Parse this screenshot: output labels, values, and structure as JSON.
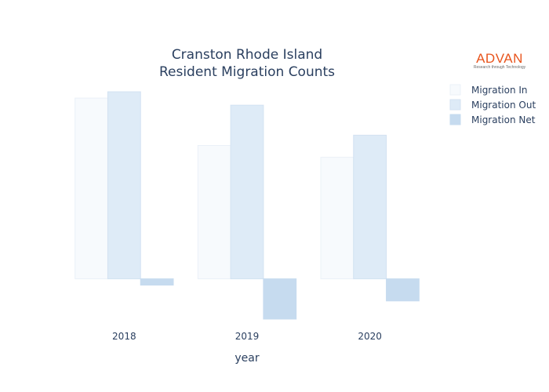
{
  "colors": {
    "migration_in": "#f7fafd",
    "migration_in_stroke": "#ebf1f8",
    "migration_out": "#deebf7",
    "migration_out_stroke": "#d3e2f2",
    "migration_net": "#c6dbef",
    "logo": "#e8541c"
  },
  "logo": {
    "word": "ADVAN",
    "tagline": "Research through Technology"
  },
  "chart_data": {
    "type": "bar",
    "title": "Cranston Rhode Island\nResident Migration Counts",
    "title_lines": [
      "Cranston Rhode Island",
      "Resident Migration Counts"
    ],
    "xlabel": "year",
    "ylabel": "",
    "categories": [
      "2018",
      "2019",
      "2020"
    ],
    "series": [
      {
        "name": "Migration In",
        "values": [
          2290,
          1690,
          1540
        ]
      },
      {
        "name": "Migration Out",
        "values": [
          2370,
          2200,
          1820
        ]
      },
      {
        "name": "Migration Net",
        "values": [
          -80,
          -510,
          -280
        ]
      }
    ],
    "ylim": [
      -540,
      2440
    ],
    "grid": false,
    "legend_position": "top-right"
  }
}
